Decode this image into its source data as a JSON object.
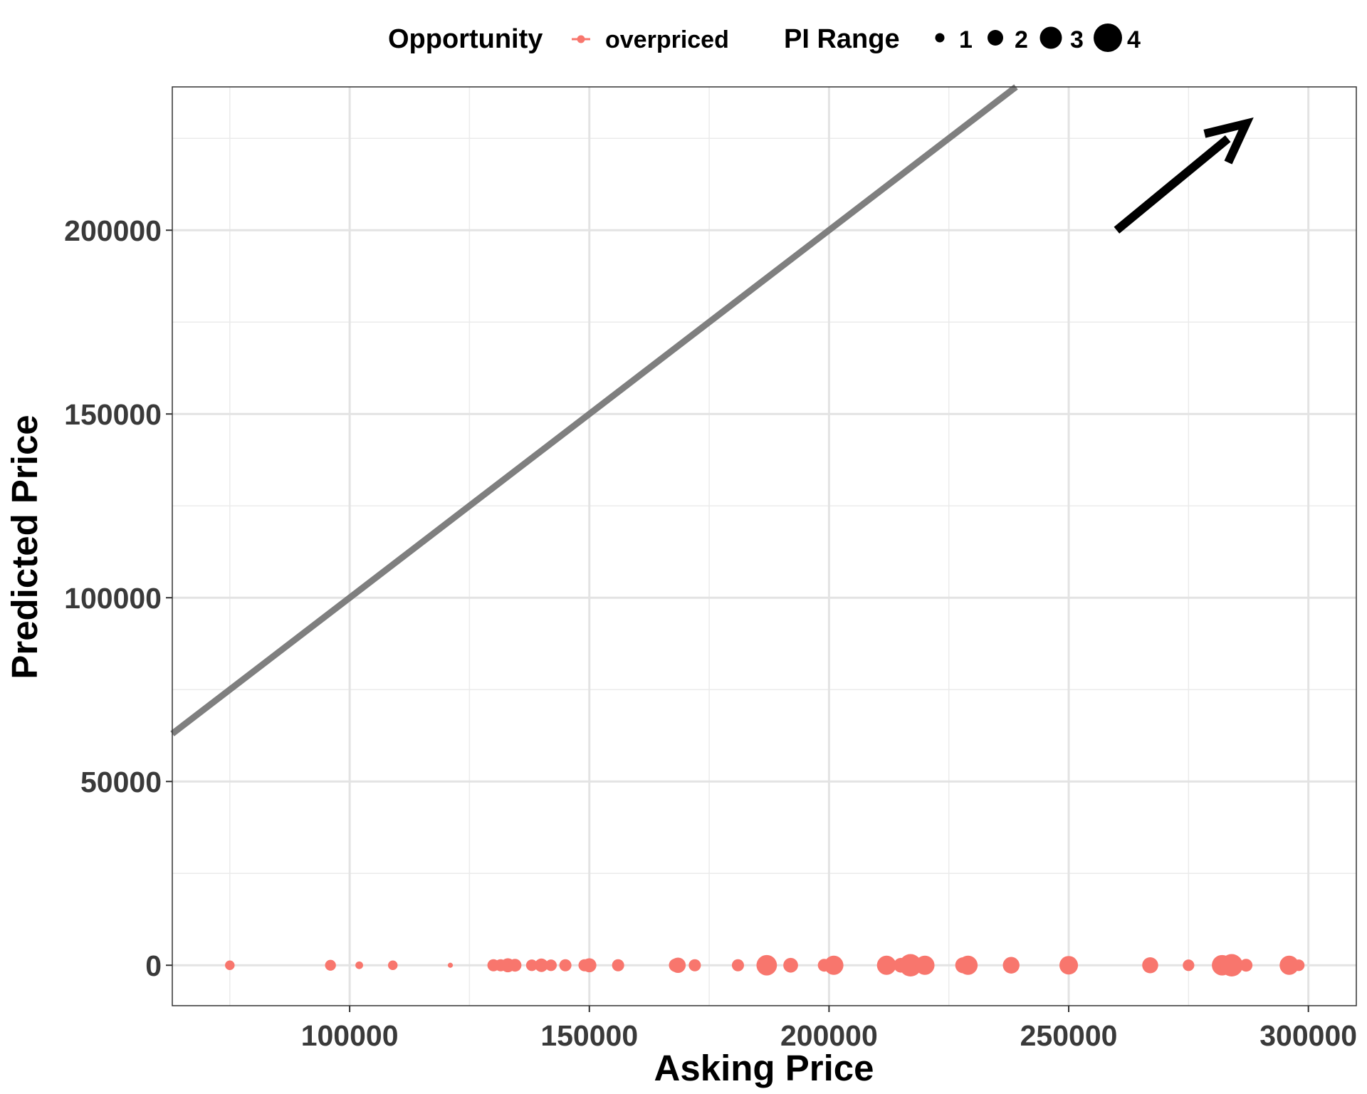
{
  "chart_data": {
    "type": "scatter",
    "title": "",
    "xlabel": "Asking Price",
    "ylabel": "Predicted Price",
    "xlim": [
      63000,
      310000
    ],
    "ylim": [
      -11000,
      239000
    ],
    "x_ticks": [
      100000,
      150000,
      200000,
      250000,
      300000
    ],
    "y_ticks": [
      0,
      50000,
      100000,
      150000,
      200000
    ],
    "grid": true,
    "legend_placement": "top",
    "legend": {
      "color_title": "Opportunity",
      "color_entries": [
        {
          "label": "overpriced",
          "color": "#F8766D"
        }
      ],
      "size_title": "PI Range",
      "size_entries": [
        "1",
        "2",
        "3",
        "4"
      ]
    },
    "reference_line": {
      "slope": 1,
      "intercept": 0,
      "color": "#7f7f7f"
    },
    "annotation": {
      "type": "arrow",
      "from": [
        260000,
        200000
      ],
      "to": [
        287000,
        229000
      ],
      "color": "#000000"
    },
    "series": [
      {
        "name": "overpriced",
        "color": "#F8766D",
        "points": [
          {
            "x": 75000,
            "y": 0,
            "pi_range": 1.5
          },
          {
            "x": 96000,
            "y": 0,
            "pi_range": 1.7
          },
          {
            "x": 102000,
            "y": 0,
            "pi_range": 1.2
          },
          {
            "x": 109000,
            "y": 0,
            "pi_range": 1.5
          },
          {
            "x": 121000,
            "y": 0,
            "pi_range": 0.8
          },
          {
            "x": 130000,
            "y": 0,
            "pi_range": 1.9
          },
          {
            "x": 131500,
            "y": 0,
            "pi_range": 1.9
          },
          {
            "x": 133000,
            "y": 0,
            "pi_range": 2.2
          },
          {
            "x": 134500,
            "y": 0,
            "pi_range": 2.0
          },
          {
            "x": 138000,
            "y": 0,
            "pi_range": 1.8
          },
          {
            "x": 140000,
            "y": 0,
            "pi_range": 2.1
          },
          {
            "x": 142000,
            "y": 0,
            "pi_range": 1.8
          },
          {
            "x": 145000,
            "y": 0,
            "pi_range": 1.9
          },
          {
            "x": 149000,
            "y": 0,
            "pi_range": 1.9
          },
          {
            "x": 150000,
            "y": 0,
            "pi_range": 2.2
          },
          {
            "x": 156000,
            "y": 0,
            "pi_range": 1.9
          },
          {
            "x": 168000,
            "y": 0,
            "pi_range": 2.1
          },
          {
            "x": 168500,
            "y": 0,
            "pi_range": 2.4
          },
          {
            "x": 172000,
            "y": 0,
            "pi_range": 1.9
          },
          {
            "x": 181000,
            "y": 0,
            "pi_range": 1.9
          },
          {
            "x": 187000,
            "y": 0,
            "pi_range": 3.2
          },
          {
            "x": 192000,
            "y": 0,
            "pi_range": 2.3
          },
          {
            "x": 199000,
            "y": 0,
            "pi_range": 2.0
          },
          {
            "x": 201000,
            "y": 0,
            "pi_range": 3.0
          },
          {
            "x": 212000,
            "y": 0,
            "pi_range": 3.0
          },
          {
            "x": 215000,
            "y": 0,
            "pi_range": 2.3
          },
          {
            "x": 217000,
            "y": 0,
            "pi_range": 3.5
          },
          {
            "x": 220000,
            "y": 0,
            "pi_range": 3.0
          },
          {
            "x": 228000,
            "y": 0,
            "pi_range": 2.5
          },
          {
            "x": 229000,
            "y": 0,
            "pi_range": 3.0
          },
          {
            "x": 238000,
            "y": 0,
            "pi_range": 2.6
          },
          {
            "x": 250000,
            "y": 0,
            "pi_range": 2.9
          },
          {
            "x": 267000,
            "y": 0,
            "pi_range": 2.5
          },
          {
            "x": 275000,
            "y": 0,
            "pi_range": 1.8
          },
          {
            "x": 282000,
            "y": 0,
            "pi_range": 3.2
          },
          {
            "x": 284000,
            "y": 0,
            "pi_range": 3.5
          },
          {
            "x": 287000,
            "y": 0,
            "pi_range": 2.0
          },
          {
            "x": 296000,
            "y": 0,
            "pi_range": 3.0
          },
          {
            "x": 298000,
            "y": 0,
            "pi_range": 1.8
          }
        ]
      }
    ]
  }
}
